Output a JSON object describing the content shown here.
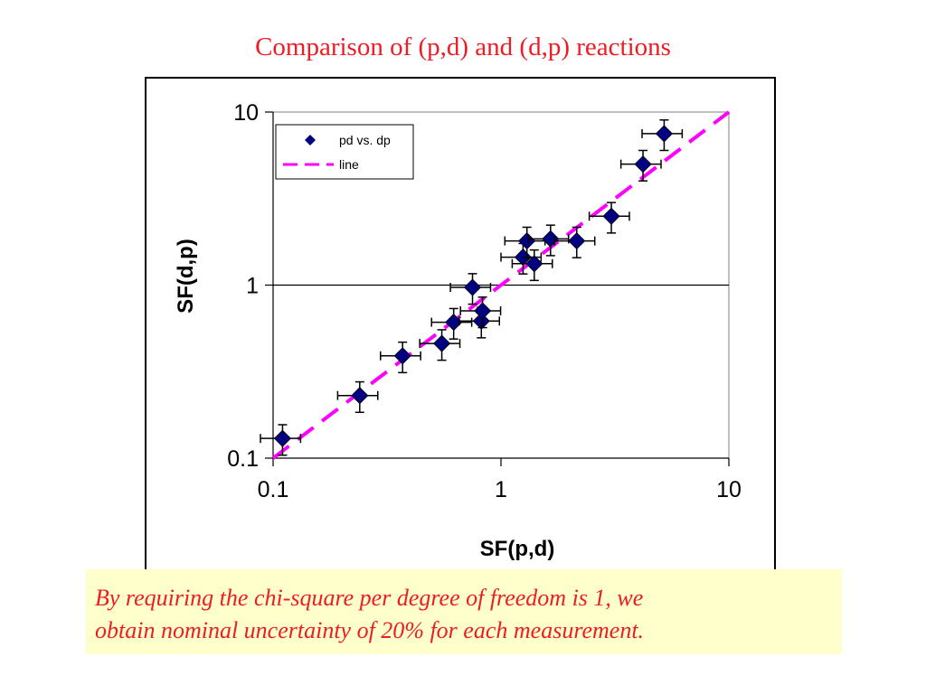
{
  "slide": {
    "title": "Comparison of (p,d) and (d,p) reactions",
    "caption_line1": "By requiring the chi-square per degree of freedom is 1, we",
    "caption_line2": "obtain nominal uncertainty of 20% for each measurement."
  },
  "colors": {
    "title": "#ee1c25",
    "caption_text": "#ee1c25",
    "caption_bg": "#ffffcc",
    "marker": "#000080",
    "line": "#ff00ff"
  },
  "chart_data": {
    "type": "scatter",
    "xscale": "log",
    "yscale": "log",
    "xlim": [
      0.1,
      10
    ],
    "ylim": [
      0.1,
      10
    ],
    "xlabel": "SF(p,d)",
    "ylabel": "SF(d,p)",
    "xticks": [
      "0.1",
      "1",
      "10"
    ],
    "yticks": [
      "0.1",
      "1",
      "10"
    ],
    "legend_position": "top-left",
    "error_bars": "20%",
    "series": [
      {
        "name": "pd vs. dp",
        "marker": "diamond",
        "points": [
          [
            0.11,
            0.13
          ],
          [
            0.24,
            0.23
          ],
          [
            0.37,
            0.39
          ],
          [
            0.55,
            0.46
          ],
          [
            0.62,
            0.61
          ],
          [
            0.75,
            0.97
          ],
          [
            0.82,
            0.62
          ],
          [
            0.83,
            0.71
          ],
          [
            1.25,
            1.45
          ],
          [
            1.3,
            1.8
          ],
          [
            1.4,
            1.33
          ],
          [
            1.65,
            1.85
          ],
          [
            2.15,
            1.8
          ],
          [
            3.05,
            2.5
          ],
          [
            4.2,
            5.0
          ],
          [
            5.2,
            7.5
          ]
        ]
      },
      {
        "name": "line",
        "style": "dashed",
        "points": [
          [
            0.1,
            0.1
          ],
          [
            10,
            10
          ]
        ]
      }
    ]
  }
}
